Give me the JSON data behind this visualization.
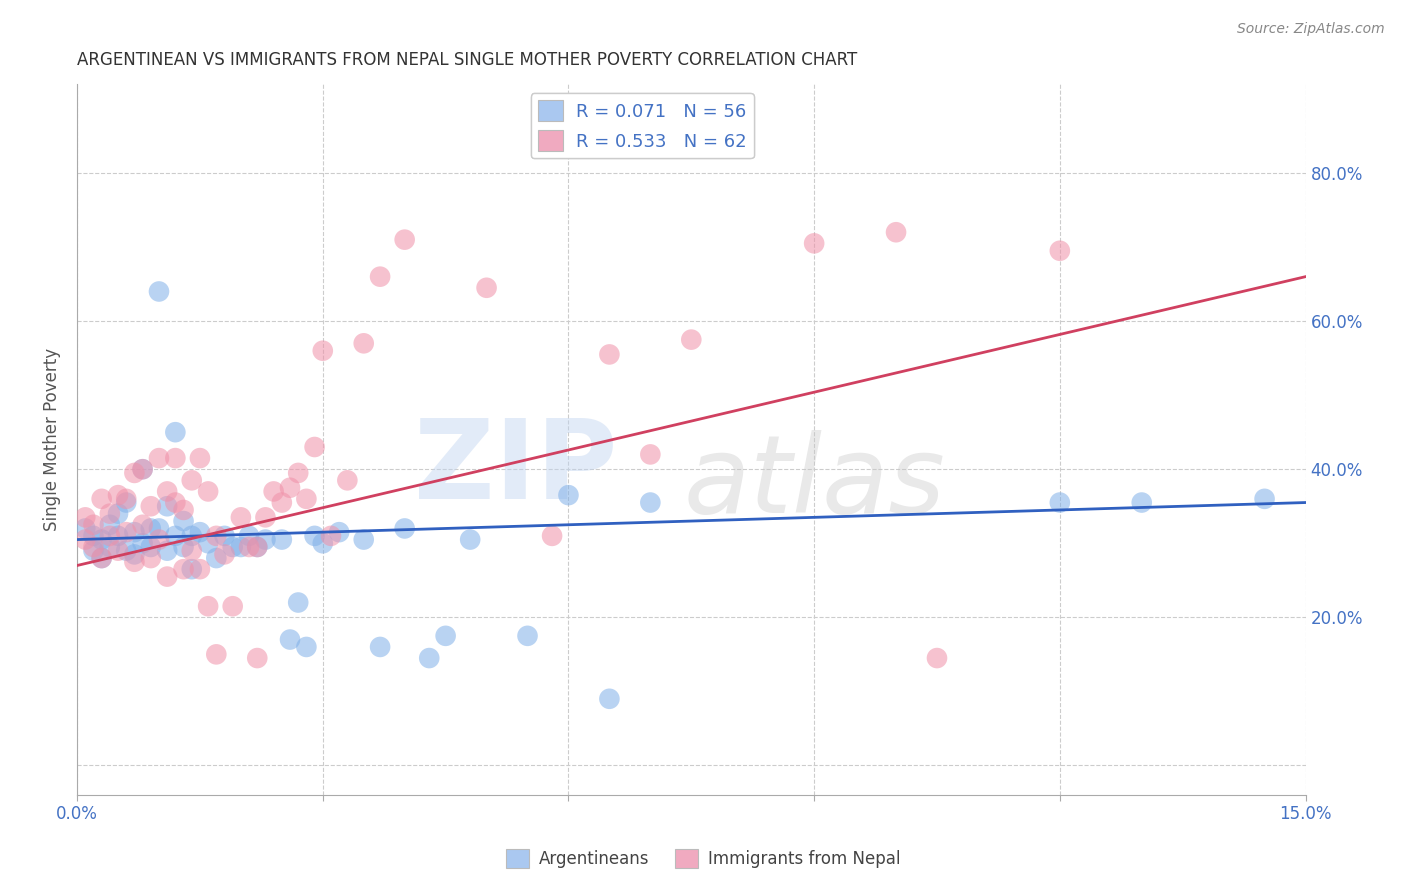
{
  "title": "ARGENTINEAN VS IMMIGRANTS FROM NEPAL SINGLE MOTHER POVERTY CORRELATION CHART",
  "source": "Source: ZipAtlas.com",
  "xlim": [
    0.0,
    0.15
  ],
  "ylim": [
    -0.04,
    0.92
  ],
  "ylabel": "Single Mother Poverty",
  "legend_entries": [
    {
      "label": "R = 0.071   N = 56",
      "color": "#aac8f0"
    },
    {
      "label": "R = 0.533   N = 62",
      "color": "#f0aac0"
    }
  ],
  "legend_labels_bottom": [
    "Argentineans",
    "Immigrants from Nepal"
  ],
  "blue_color": "#80b0e8",
  "pink_color": "#f090a8",
  "blue_line_color": "#3060c0",
  "pink_line_color": "#d04060",
  "blue_scatter": [
    [
      0.001,
      0.32
    ],
    [
      0.002,
      0.29
    ],
    [
      0.002,
      0.31
    ],
    [
      0.003,
      0.28
    ],
    [
      0.003,
      0.305
    ],
    [
      0.004,
      0.325
    ],
    [
      0.004,
      0.295
    ],
    [
      0.005,
      0.34
    ],
    [
      0.005,
      0.31
    ],
    [
      0.006,
      0.29
    ],
    [
      0.006,
      0.355
    ],
    [
      0.007,
      0.315
    ],
    [
      0.007,
      0.285
    ],
    [
      0.008,
      0.3
    ],
    [
      0.008,
      0.4
    ],
    [
      0.009,
      0.32
    ],
    [
      0.009,
      0.295
    ],
    [
      0.01,
      0.64
    ],
    [
      0.01,
      0.32
    ],
    [
      0.011,
      0.35
    ],
    [
      0.011,
      0.29
    ],
    [
      0.012,
      0.45
    ],
    [
      0.012,
      0.31
    ],
    [
      0.013,
      0.33
    ],
    [
      0.013,
      0.295
    ],
    [
      0.014,
      0.31
    ],
    [
      0.014,
      0.265
    ],
    [
      0.015,
      0.315
    ],
    [
      0.016,
      0.3
    ],
    [
      0.017,
      0.28
    ],
    [
      0.018,
      0.31
    ],
    [
      0.019,
      0.295
    ],
    [
      0.02,
      0.295
    ],
    [
      0.021,
      0.31
    ],
    [
      0.022,
      0.295
    ],
    [
      0.023,
      0.305
    ],
    [
      0.025,
      0.305
    ],
    [
      0.026,
      0.17
    ],
    [
      0.027,
      0.22
    ],
    [
      0.028,
      0.16
    ],
    [
      0.029,
      0.31
    ],
    [
      0.03,
      0.3
    ],
    [
      0.032,
      0.315
    ],
    [
      0.035,
      0.305
    ],
    [
      0.037,
      0.16
    ],
    [
      0.04,
      0.32
    ],
    [
      0.043,
      0.145
    ],
    [
      0.045,
      0.175
    ],
    [
      0.048,
      0.305
    ],
    [
      0.055,
      0.175
    ],
    [
      0.06,
      0.365
    ],
    [
      0.065,
      0.09
    ],
    [
      0.07,
      0.355
    ],
    [
      0.12,
      0.355
    ],
    [
      0.13,
      0.355
    ],
    [
      0.145,
      0.36
    ]
  ],
  "pink_scatter": [
    [
      0.001,
      0.335
    ],
    [
      0.001,
      0.305
    ],
    [
      0.002,
      0.325
    ],
    [
      0.002,
      0.295
    ],
    [
      0.003,
      0.36
    ],
    [
      0.003,
      0.28
    ],
    [
      0.004,
      0.34
    ],
    [
      0.004,
      0.31
    ],
    [
      0.005,
      0.29
    ],
    [
      0.005,
      0.365
    ],
    [
      0.006,
      0.315
    ],
    [
      0.006,
      0.36
    ],
    [
      0.007,
      0.275
    ],
    [
      0.007,
      0.395
    ],
    [
      0.008,
      0.325
    ],
    [
      0.008,
      0.4
    ],
    [
      0.009,
      0.35
    ],
    [
      0.009,
      0.28
    ],
    [
      0.01,
      0.415
    ],
    [
      0.01,
      0.305
    ],
    [
      0.011,
      0.37
    ],
    [
      0.011,
      0.255
    ],
    [
      0.012,
      0.415
    ],
    [
      0.012,
      0.355
    ],
    [
      0.013,
      0.345
    ],
    [
      0.013,
      0.265
    ],
    [
      0.014,
      0.385
    ],
    [
      0.014,
      0.29
    ],
    [
      0.015,
      0.415
    ],
    [
      0.015,
      0.265
    ],
    [
      0.016,
      0.37
    ],
    [
      0.016,
      0.215
    ],
    [
      0.017,
      0.31
    ],
    [
      0.017,
      0.15
    ],
    [
      0.018,
      0.285
    ],
    [
      0.019,
      0.215
    ],
    [
      0.02,
      0.335
    ],
    [
      0.021,
      0.295
    ],
    [
      0.022,
      0.295
    ],
    [
      0.022,
      0.145
    ],
    [
      0.023,
      0.335
    ],
    [
      0.024,
      0.37
    ],
    [
      0.025,
      0.355
    ],
    [
      0.026,
      0.375
    ],
    [
      0.027,
      0.395
    ],
    [
      0.028,
      0.36
    ],
    [
      0.029,
      0.43
    ],
    [
      0.03,
      0.56
    ],
    [
      0.031,
      0.31
    ],
    [
      0.033,
      0.385
    ],
    [
      0.035,
      0.57
    ],
    [
      0.037,
      0.66
    ],
    [
      0.04,
      0.71
    ],
    [
      0.05,
      0.645
    ],
    [
      0.058,
      0.31
    ],
    [
      0.065,
      0.555
    ],
    [
      0.07,
      0.42
    ],
    [
      0.075,
      0.575
    ],
    [
      0.09,
      0.705
    ],
    [
      0.1,
      0.72
    ],
    [
      0.105,
      0.145
    ],
    [
      0.12,
      0.695
    ]
  ]
}
